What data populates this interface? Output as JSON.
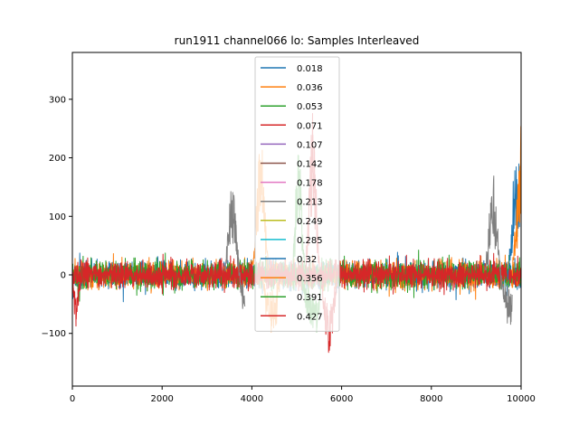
{
  "chart_data": {
    "type": "line",
    "title": "run1911 channel066 lo: Samples Interleaved",
    "xlabel": "",
    "ylabel": "",
    "xlim": [
      0,
      10000
    ],
    "ylim": [
      -190,
      380
    ],
    "xticks": [
      0,
      2000,
      4000,
      6000,
      8000,
      10000
    ],
    "xtick_labels": [
      "0",
      "2000",
      "4000",
      "6000",
      "8000",
      "10000"
    ],
    "yticks": [
      -100,
      0,
      100,
      200,
      300
    ],
    "ytick_labels": [
      "−100",
      "0",
      "100",
      "200",
      "300"
    ],
    "grid": false,
    "legend_position": "upper-center",
    "series": [
      {
        "name": "0.018",
        "color": "#1f77b4",
        "segments": [
          [
            [
              9700,
              0
            ],
            [
              9780,
              80
            ],
            [
              9830,
              170
            ],
            [
              9880,
              210
            ],
            [
              9920,
              150
            ],
            [
              10000,
              230
            ]
          ]
        ]
      },
      {
        "name": "0.036",
        "color": "#ff7f0e",
        "segments": [
          [
            [
              4250,
              -10
            ],
            [
              4300,
              -60
            ],
            [
              4350,
              -80
            ],
            [
              4420,
              -95
            ],
            [
              4480,
              -105
            ],
            [
              4550,
              -80
            ],
            [
              4600,
              -20
            ]
          ],
          [
            [
              9800,
              0
            ],
            [
              9850,
              70
            ],
            [
              9900,
              120
            ],
            [
              9950,
              190
            ],
            [
              10000,
              270
            ]
          ]
        ]
      },
      {
        "name": "0.053",
        "color": "#2ca02c",
        "segments": [
          [
            [
              5100,
              -10
            ],
            [
              5200,
              -60
            ],
            [
              5300,
              -80
            ],
            [
              5380,
              -95
            ],
            [
              5450,
              -110
            ],
            [
              5500,
              -70
            ],
            [
              5550,
              -20
            ]
          ]
        ]
      },
      {
        "name": "0.071",
        "color": "#d62728",
        "segments": [
          [
            [
              5550,
              -20
            ],
            [
              5600,
              -80
            ],
            [
              5680,
              -110
            ],
            [
              5740,
              -130
            ],
            [
              5800,
              -100
            ],
            [
              5880,
              -40
            ]
          ]
        ]
      },
      {
        "name": "0.107",
        "color": "#9467bd",
        "segments": []
      },
      {
        "name": "0.142",
        "color": "#8c564b",
        "segments": []
      },
      {
        "name": "0.178",
        "color": "#e377c2",
        "segments": []
      },
      {
        "name": "0.213",
        "color": "#7f7f7f",
        "segments": [
          [
            [
              3400,
              10
            ],
            [
              3450,
              60
            ],
            [
              3500,
              120
            ],
            [
              3550,
              160
            ],
            [
              3600,
              150
            ],
            [
              3650,
              90
            ],
            [
              3700,
              30
            ],
            [
              3750,
              -30
            ],
            [
              3800,
              -60
            ],
            [
              3850,
              -50
            ]
          ],
          [
            [
              9200,
              10
            ],
            [
              9260,
              60
            ],
            [
              9320,
              140
            ],
            [
              9380,
              170
            ],
            [
              9440,
              130
            ],
            [
              9500,
              50
            ],
            [
              9560,
              -20
            ],
            [
              9620,
              -50
            ],
            [
              9700,
              -80
            ],
            [
              9760,
              -95
            ],
            [
              9800,
              -70
            ]
          ]
        ]
      },
      {
        "name": "0.249",
        "color": "#bcbd22",
        "segments": []
      },
      {
        "name": "0.285",
        "color": "#17becf",
        "segments": []
      },
      {
        "name": "0.32",
        "color": "#1f77b4",
        "segments": []
      },
      {
        "name": "0.356",
        "color": "#ff7f0e",
        "segments": [
          [
            [
              4000,
              10
            ],
            [
              4080,
              100
            ],
            [
              4150,
              200
            ],
            [
              4200,
              270
            ],
            [
              4250,
              200
            ],
            [
              4300,
              100
            ],
            [
              4360,
              20
            ]
          ]
        ]
      },
      {
        "name": "0.391",
        "color": "#2ca02c",
        "segments": [
          [
            [
              4900,
              10
            ],
            [
              4960,
              100
            ],
            [
              5000,
              200
            ],
            [
              5040,
              250
            ],
            [
              5080,
              180
            ],
            [
              5140,
              60
            ],
            [
              5200,
              0
            ]
          ]
        ]
      },
      {
        "name": "0.427",
        "color": "#d62728",
        "segments": [
          [
            [
              0,
              0
            ],
            [
              40,
              -60
            ],
            [
              80,
              -95
            ],
            [
              140,
              -40
            ],
            [
              200,
              0
            ]
          ],
          [
            [
              5200,
              10
            ],
            [
              5260,
              120
            ],
            [
              5310,
              230
            ],
            [
              5360,
              310
            ],
            [
              5410,
              210
            ],
            [
              5460,
              90
            ],
            [
              5520,
              0
            ]
          ]
        ]
      }
    ]
  }
}
